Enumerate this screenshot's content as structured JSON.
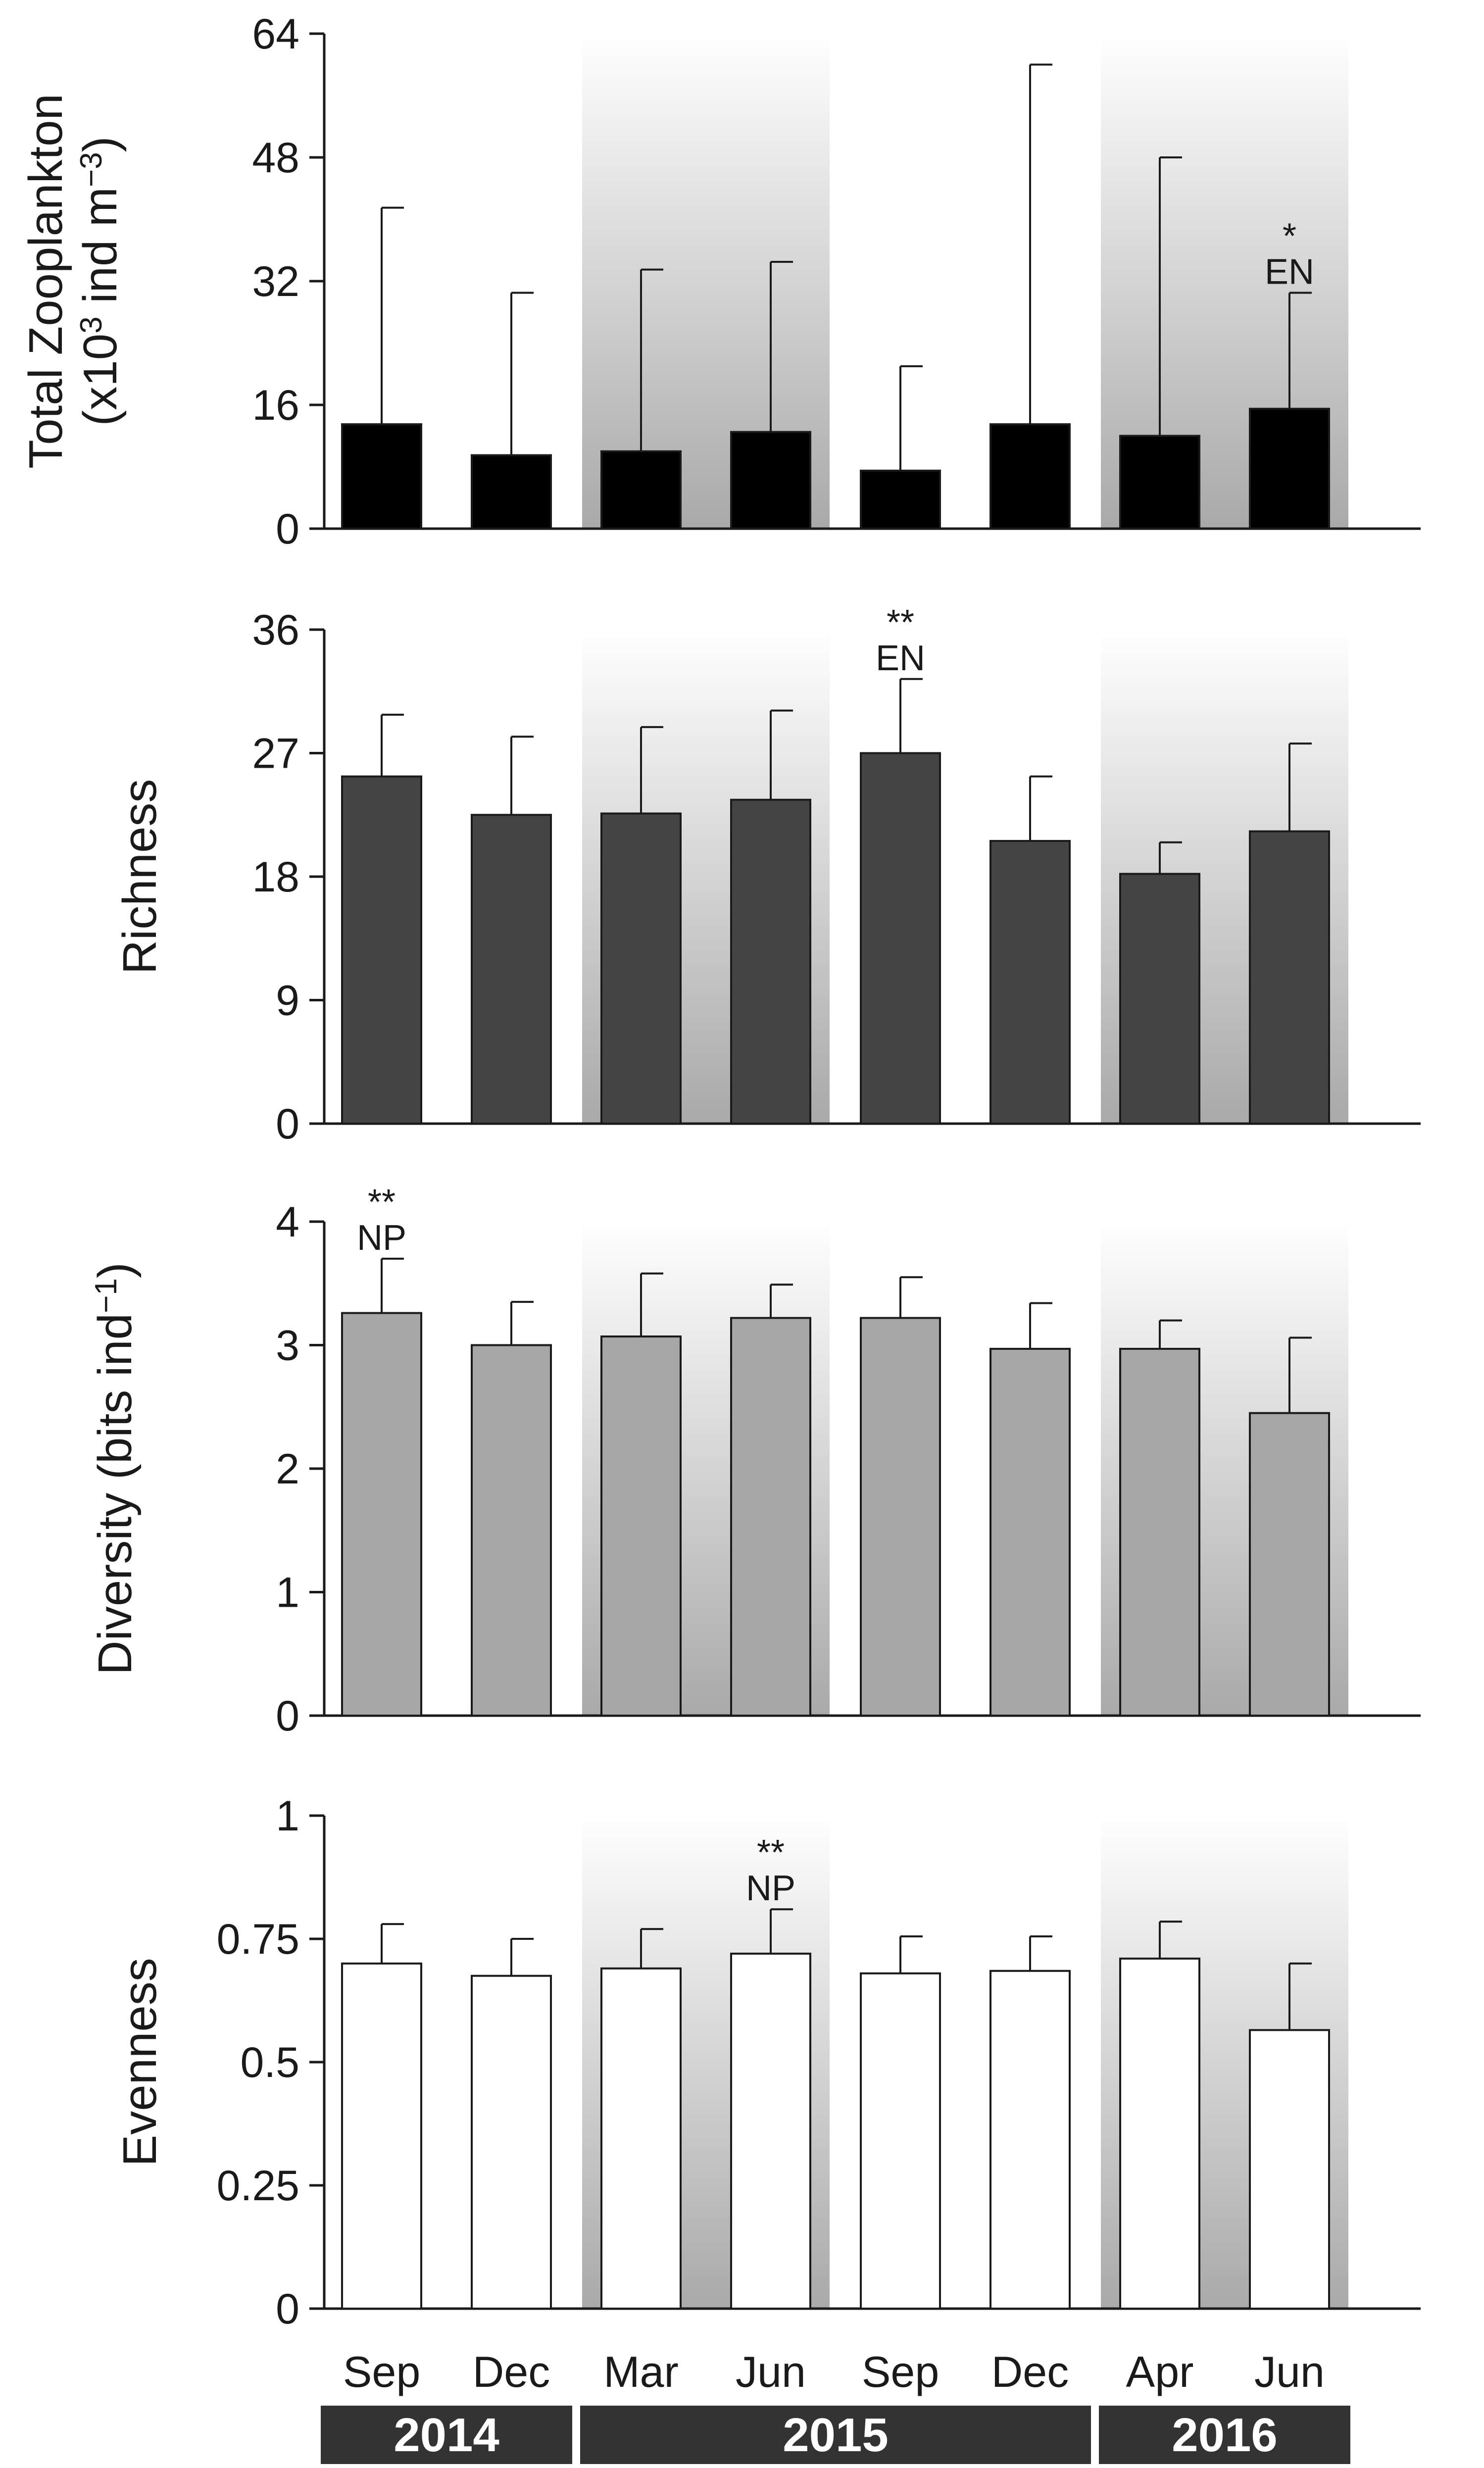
{
  "chart_data": [
    {
      "type": "bar",
      "ylabel_line1": "Total Zooplankton",
      "ylabel_line2_parts": [
        "(x10",
        "3",
        " ind m",
        "−3",
        ")"
      ],
      "ylim": [
        0,
        64
      ],
      "yticks": [
        "0",
        "16",
        "32",
        "48",
        "64"
      ],
      "bar_color": "#000000",
      "categories": [
        "Sep",
        "Dec",
        "Mar",
        "Jun",
        "Sep",
        "Dec",
        "Apr",
        "Jun"
      ],
      "values": [
        13.5,
        9.5,
        10,
        12.5,
        7.5,
        13.5,
        12,
        15.5
      ],
      "error_upper": [
        41.5,
        30.5,
        33.5,
        34.5,
        21,
        60,
        48,
        30.5
      ],
      "annotations": [
        {
          "index": 7,
          "stars": "*",
          "label": "EN"
        }
      ]
    },
    {
      "type": "bar",
      "ylabel_line1": "Richness",
      "ylim": [
        0,
        36
      ],
      "yticks": [
        "0",
        "9",
        "18",
        "27",
        "36"
      ],
      "bar_color": "#444444",
      "categories": [
        "Sep",
        "Dec",
        "Mar",
        "Jun",
        "Sep",
        "Dec",
        "Apr",
        "Jun"
      ],
      "values": [
        25.3,
        22.5,
        22.6,
        23.6,
        27,
        20.6,
        18.2,
        21.3
      ],
      "error_upper": [
        29.8,
        28.2,
        28.9,
        30.1,
        32.4,
        25.3,
        20.5,
        27.7
      ],
      "annotations": [
        {
          "index": 4,
          "stars": "**",
          "label": "EN"
        }
      ]
    },
    {
      "type": "bar",
      "ylabel_line1": "Diversity (bits ind",
      "ylabel_sup": "−1",
      "ylabel_close": ")",
      "ylim": [
        0,
        4
      ],
      "yticks": [
        "0",
        "1",
        "2",
        "3",
        "4"
      ],
      "bar_color": "#a6a6a6",
      "categories": [
        "Sep",
        "Dec",
        "Mar",
        "Jun",
        "Sep",
        "Dec",
        "Apr",
        "Jun"
      ],
      "values": [
        3.26,
        3.0,
        3.07,
        3.22,
        3.22,
        2.97,
        2.97,
        2.45
      ],
      "error_upper": [
        3.7,
        3.35,
        3.58,
        3.49,
        3.55,
        3.34,
        3.2,
        3.06
      ],
      "annotations": [
        {
          "index": 0,
          "stars": "**",
          "label": "NP"
        }
      ]
    },
    {
      "type": "bar",
      "ylabel_line1": "Evenness",
      "ylim": [
        0,
        1
      ],
      "yticks": [
        "0",
        "0.25",
        "0.5",
        "0.75",
        "1"
      ],
      "bar_color": "#ffffff",
      "categories": [
        "Sep",
        "Dec",
        "Mar",
        "Jun",
        "Sep",
        "Dec",
        "Apr",
        "Jun"
      ],
      "values": [
        0.7,
        0.675,
        0.69,
        0.72,
        0.68,
        0.685,
        0.71,
        0.565
      ],
      "error_upper": [
        0.78,
        0.75,
        0.77,
        0.81,
        0.755,
        0.755,
        0.785,
        0.7
      ],
      "annotations": [
        {
          "index": 3,
          "stars": "**",
          "label": "NP"
        }
      ]
    }
  ],
  "x_categories": [
    "Sep",
    "Dec",
    "Mar",
    "Jun",
    "Sep",
    "Dec",
    "Apr",
    "Jun"
  ],
  "shaded_periods": [
    {
      "from_index": 2,
      "to_index": 3
    },
    {
      "from_index": 6,
      "to_index": 7
    }
  ],
  "years": [
    {
      "label": "2014",
      "from_index": 0,
      "to_index": 1
    },
    {
      "label": "2015",
      "from_index": 2,
      "to_index": 5
    },
    {
      "label": "2016",
      "from_index": 6,
      "to_index": 7
    }
  ],
  "colors": {
    "axis": "#1a1a1a",
    "shade_top": "#ffffff",
    "shade_bottom": "#a9a9a9",
    "year_box": "#333333"
  }
}
